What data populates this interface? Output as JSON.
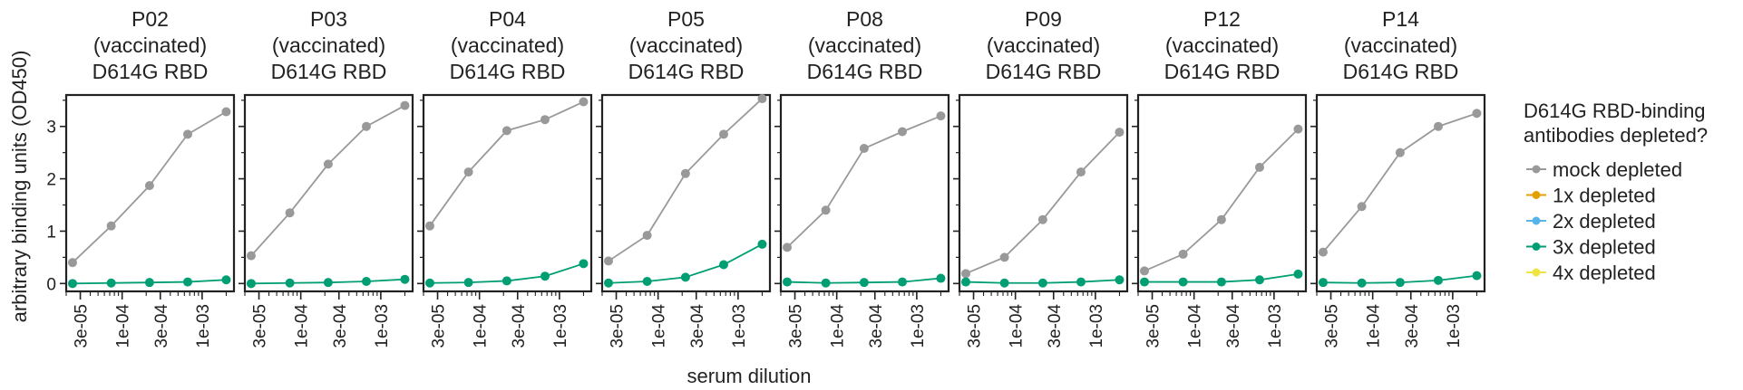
{
  "figure": {
    "ylabel": "arbitrary binding units (OD450)",
    "xlabel": "serum dilution",
    "legend": {
      "title_lines": [
        "D614G RBD-binding",
        "antibodies depleted?"
      ],
      "placement": "right"
    }
  },
  "chart_data": {
    "type": "line",
    "x_scale": "log",
    "xlim": [
      2e-05,
      0.0025
    ],
    "ylim": [
      -0.15,
      3.6
    ],
    "x_ticks": [
      3e-05,
      0.0001,
      0.0003,
      0.001
    ],
    "x_tick_labels": [
      "3e-05",
      "1e-04",
      "3e-04",
      "1e-03"
    ],
    "y_ticks": [
      0,
      1,
      2,
      3
    ],
    "y_tick_labels": [
      "0",
      "1",
      "2",
      "3"
    ],
    "x": [
      2.4e-05,
      7.3e-05,
      0.00022,
      0.00066,
      0.002
    ],
    "series_styles": [
      {
        "name": "mock depleted",
        "color": "#999999"
      },
      {
        "name": "1x depleted",
        "color": "#E69F00"
      },
      {
        "name": "2x depleted",
        "color": "#56B4E9"
      },
      {
        "name": "3x depleted",
        "color": "#009E73"
      },
      {
        "name": "4x depleted",
        "color": "#F0E442"
      }
    ],
    "panels": [
      {
        "title_lines": [
          "P02",
          "(vaccinated)",
          "D614G RBD"
        ],
        "series": [
          {
            "name": "mock depleted",
            "values": [
              0.4,
              1.1,
              1.87,
              2.85,
              3.28
            ]
          },
          {
            "name": "3x depleted",
            "values": [
              0.0,
              0.01,
              0.02,
              0.03,
              0.07
            ]
          }
        ]
      },
      {
        "title_lines": [
          "P03",
          "(vaccinated)",
          "D614G RBD"
        ],
        "series": [
          {
            "name": "mock depleted",
            "values": [
              0.53,
              1.35,
              2.28,
              3.0,
              3.4
            ]
          },
          {
            "name": "3x depleted",
            "values": [
              0.0,
              0.01,
              0.02,
              0.04,
              0.08
            ]
          }
        ]
      },
      {
        "title_lines": [
          "P04",
          "(vaccinated)",
          "D614G RBD"
        ],
        "series": [
          {
            "name": "mock depleted",
            "values": [
              1.1,
              2.13,
              2.92,
              3.13,
              3.47
            ]
          },
          {
            "name": "3x depleted",
            "values": [
              0.01,
              0.02,
              0.05,
              0.14,
              0.38
            ]
          }
        ]
      },
      {
        "title_lines": [
          "P05",
          "(vaccinated)",
          "D614G RBD"
        ],
        "series": [
          {
            "name": "mock depleted",
            "values": [
              0.43,
              0.92,
              2.1,
              2.85,
              3.53
            ]
          },
          {
            "name": "3x depleted",
            "values": [
              0.01,
              0.04,
              0.12,
              0.36,
              0.75
            ]
          }
        ]
      },
      {
        "title_lines": [
          "P08",
          "(vaccinated)",
          "D614G RBD"
        ],
        "series": [
          {
            "name": "mock depleted",
            "values": [
              0.69,
              1.4,
              2.58,
              2.9,
              3.2
            ]
          },
          {
            "name": "3x depleted",
            "values": [
              0.03,
              0.01,
              0.02,
              0.03,
              0.1
            ]
          }
        ]
      },
      {
        "title_lines": [
          "P09",
          "(vaccinated)",
          "D614G RBD"
        ],
        "series": [
          {
            "name": "mock depleted",
            "values": [
              0.19,
              0.5,
              1.22,
              2.13,
              2.89
            ]
          },
          {
            "name": "3x depleted",
            "values": [
              0.03,
              0.01,
              0.01,
              0.03,
              0.07
            ]
          }
        ]
      },
      {
        "title_lines": [
          "P12",
          "(vaccinated)",
          "D614G RBD"
        ],
        "series": [
          {
            "name": "mock depleted",
            "values": [
              0.24,
              0.56,
              1.22,
              2.22,
              2.95
            ]
          },
          {
            "name": "3x depleted",
            "values": [
              0.03,
              0.03,
              0.03,
              0.07,
              0.18
            ]
          }
        ]
      },
      {
        "title_lines": [
          "P14",
          "(vaccinated)",
          "D614G RBD"
        ],
        "series": [
          {
            "name": "mock depleted",
            "values": [
              0.6,
              1.47,
              2.5,
              3.0,
              3.25
            ]
          },
          {
            "name": "3x depleted",
            "values": [
              0.02,
              0.01,
              0.02,
              0.06,
              0.15
            ]
          }
        ]
      }
    ]
  }
}
